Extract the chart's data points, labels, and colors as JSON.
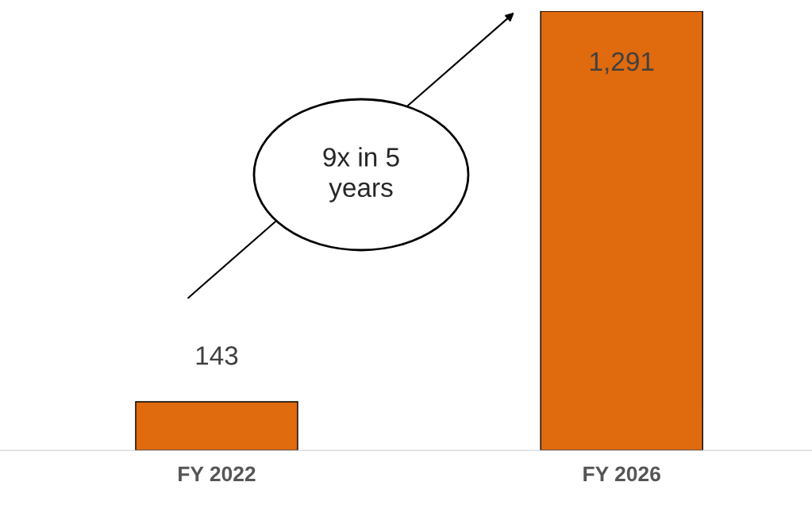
{
  "chart_data": {
    "type": "bar",
    "categories": [
      "FY 2022",
      "FY 2026"
    ],
    "values": [
      143,
      1291
    ],
    "color": "#e06a0e",
    "value_labels": [
      "143",
      "1,291"
    ],
    "ylim": [
      0,
      1291
    ],
    "annotations": [
      "9x in 5 years"
    ],
    "grid": false,
    "legend": false
  }
}
